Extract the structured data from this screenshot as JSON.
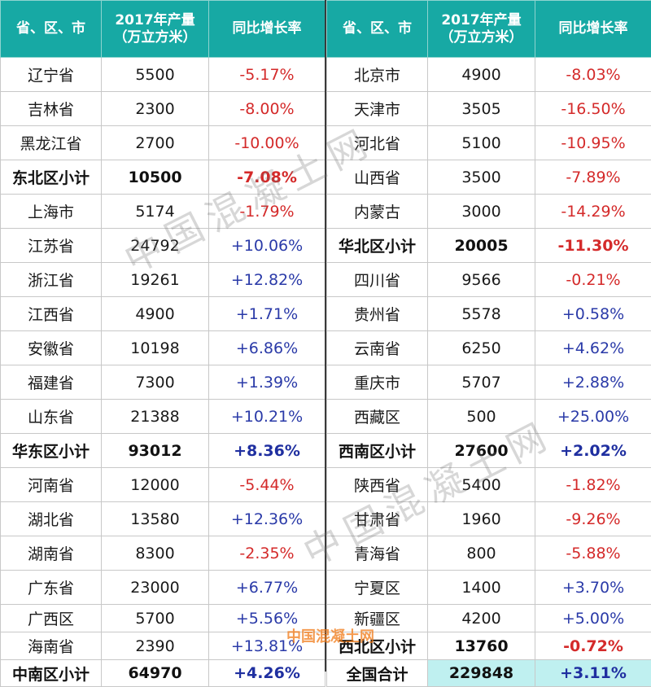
{
  "headers": {
    "region": "省、区、市",
    "output_line1": "2017年产量",
    "output_line2": "（万立方米）",
    "growth": "同比增长率"
  },
  "left_rows": [
    {
      "name": "辽宁省",
      "value": "5500",
      "growth": "-5.17%",
      "sign": "neg"
    },
    {
      "name": "吉林省",
      "value": "2300",
      "growth": "-8.00%",
      "sign": "neg"
    },
    {
      "name": "黑龙江省",
      "value": "2700",
      "growth": "-10.00%",
      "sign": "neg"
    },
    {
      "name": "东北区小计",
      "value": "10500",
      "growth": "-7.08%",
      "sign": "neg",
      "subtotal": true
    },
    {
      "name": "上海市",
      "value": "5174",
      "growth": "-1.79%",
      "sign": "neg"
    },
    {
      "name": "江苏省",
      "value": "24792",
      "growth": "+10.06%",
      "sign": "pos"
    },
    {
      "name": "浙江省",
      "value": "19261",
      "growth": "+12.82%",
      "sign": "pos"
    },
    {
      "name": "江西省",
      "value": "4900",
      "growth": "+1.71%",
      "sign": "pos"
    },
    {
      "name": "安徽省",
      "value": "10198",
      "growth": "+6.86%",
      "sign": "pos"
    },
    {
      "name": "福建省",
      "value": "7300",
      "growth": "+1.39%",
      "sign": "pos"
    },
    {
      "name": "山东省",
      "value": "21388",
      "growth": "+10.21%",
      "sign": "pos"
    },
    {
      "name": "华东区小计",
      "value": "93012",
      "growth": "+8.36%",
      "sign": "pos",
      "subtotal": true
    },
    {
      "name": "河南省",
      "value": "12000",
      "growth": "-5.44%",
      "sign": "neg"
    },
    {
      "name": "湖北省",
      "value": "13580",
      "growth": "+12.36%",
      "sign": "pos"
    },
    {
      "name": "湖南省",
      "value": "8300",
      "growth": "-2.35%",
      "sign": "neg"
    },
    {
      "name": "广东省",
      "value": "23000",
      "growth": "+6.77%",
      "sign": "pos"
    },
    {
      "name": "广西区",
      "value": "5700",
      "growth": "+5.56%",
      "sign": "pos"
    },
    {
      "name": "海南省",
      "value": "2390",
      "growth": "+13.81%",
      "sign": "pos"
    },
    {
      "name": "中南区小计",
      "value": "64970",
      "growth": "+4.26%",
      "sign": "pos",
      "subtotal": true
    }
  ],
  "right_rows": [
    {
      "name": "北京市",
      "value": "4900",
      "growth": "-8.03%",
      "sign": "neg"
    },
    {
      "name": "天津市",
      "value": "3505",
      "growth": "-16.50%",
      "sign": "neg"
    },
    {
      "name": "河北省",
      "value": "5100",
      "growth": "-10.95%",
      "sign": "neg"
    },
    {
      "name": "山西省",
      "value": "3500",
      "growth": "-7.89%",
      "sign": "neg"
    },
    {
      "name": "内蒙古",
      "value": "3000",
      "growth": "-14.29%",
      "sign": "neg"
    },
    {
      "name": "华北区小计",
      "value": "20005",
      "growth": "-11.30%",
      "sign": "neg",
      "subtotal": true
    },
    {
      "name": "四川省",
      "value": "9566",
      "growth": "-0.21%",
      "sign": "neg"
    },
    {
      "name": "贵州省",
      "value": "5578",
      "growth": "+0.58%",
      "sign": "pos"
    },
    {
      "name": "云南省",
      "value": "6250",
      "growth": "+4.62%",
      "sign": "pos"
    },
    {
      "name": "重庆市",
      "value": "5707",
      "growth": "+2.88%",
      "sign": "pos"
    },
    {
      "name": "西藏区",
      "value": "500",
      "growth": "+25.00%",
      "sign": "pos"
    },
    {
      "name": "西南区小计",
      "value": "27600",
      "growth": "+2.02%",
      "sign": "pos",
      "subtotal": true
    },
    {
      "name": "陕西省",
      "value": "5400",
      "growth": "-1.82%",
      "sign": "neg"
    },
    {
      "name": "甘肃省",
      "value": "1960",
      "growth": "-9.26%",
      "sign": "neg"
    },
    {
      "name": "青海省",
      "value": "800",
      "growth": "-5.88%",
      "sign": "neg"
    },
    {
      "name": "宁夏区",
      "value": "1400",
      "growth": "+3.70%",
      "sign": "pos"
    },
    {
      "name": "新疆区",
      "value": "4200",
      "growth": "+5.00%",
      "sign": "pos"
    },
    {
      "name": "西北区小计",
      "value": "13760",
      "growth": "-0.72%",
      "sign": "neg",
      "subtotal": true
    },
    {
      "name": "全国合计",
      "value": "229848",
      "growth": "+3.11%",
      "sign": "pos",
      "subtotal": true,
      "national": true
    }
  ],
  "watermarks": [
    "中国混凝土网",
    "中国混凝土网",
    "中国混凝土网"
  ],
  "colors": {
    "header": "#17a9a4",
    "negative": "#d42a2a",
    "positive": "#2a3aa8",
    "national_highlight": "#bff0f0"
  }
}
